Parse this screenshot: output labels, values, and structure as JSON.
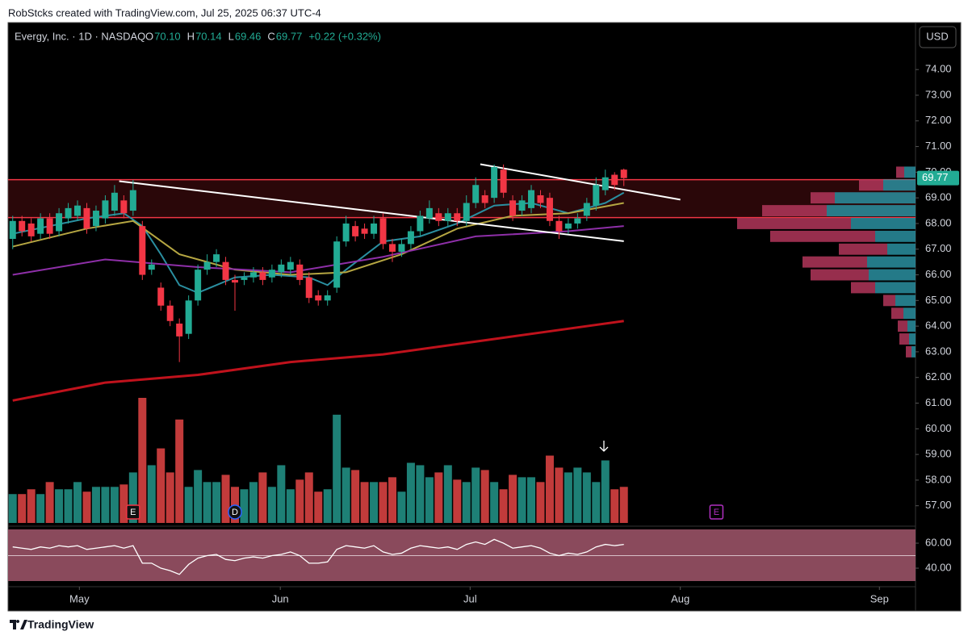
{
  "header": {
    "credit": "RobStcks created with TradingView.com, Jul 25, 2025 06:37 UTC-4",
    "symbol": "Evergy, Inc. · 1D · NASDAQ",
    "ohlc": [
      {
        "key": "O",
        "value": "70.10"
      },
      {
        "key": "H",
        "value": "70.14"
      },
      {
        "key": "L",
        "value": "69.46"
      },
      {
        "key": "C",
        "value": "69.77"
      }
    ],
    "change": "+0.22 (+0.32%)"
  },
  "currency": "USD",
  "footer": "TradingView",
  "chart_data": {
    "type": "candlestick",
    "x": [
      0,
      1,
      2,
      3,
      4,
      5,
      6,
      7,
      8,
      9,
      10,
      11,
      12,
      13,
      14,
      15,
      16,
      17,
      18,
      19,
      20,
      21,
      22,
      23,
      24,
      25,
      26,
      27,
      28,
      29,
      30,
      31,
      32,
      33,
      34,
      35,
      36,
      37,
      38,
      39,
      40,
      41,
      42,
      43,
      44,
      45,
      46,
      47,
      48,
      49,
      50,
      51,
      52,
      53,
      54,
      55,
      56,
      57,
      58,
      59,
      60,
      61,
      62,
      63,
      64,
      65,
      66
    ],
    "open": [
      67.4,
      68.1,
      68.0,
      67.6,
      68.2,
      67.7,
      68.2,
      68.3,
      68.6,
      67.9,
      68.2,
      68.5,
      68.9,
      68.5,
      67.9,
      66.2,
      65.5,
      64.8,
      64.1,
      63.7,
      65.0,
      66.2,
      66.5,
      66.5,
      65.8,
      65.8,
      65.9,
      66.1,
      65.9,
      66.1,
      66.2,
      66.4,
      65.9,
      65.2,
      65.0,
      65.5,
      67.3,
      67.9,
      67.8,
      67.6,
      68.2,
      67.2,
      66.9,
      67.2,
      67.7,
      68.2,
      68.4,
      68.1,
      68.4,
      68.1,
      68.8,
      69.1,
      69.0,
      70.1,
      68.9,
      68.5,
      68.6,
      69.1,
      69.0,
      68.1,
      67.8,
      68.0,
      68.3,
      68.7,
      69.3,
      69.9,
      70.1
    ],
    "high": [
      68.3,
      68.3,
      68.2,
      68.4,
      68.4,
      68.6,
      68.8,
      68.9,
      68.8,
      68.7,
      69.1,
      69.5,
      69.1,
      69.7,
      68.1,
      66.6,
      65.7,
      65.0,
      64.3,
      65.2,
      66.4,
      66.8,
      67.0,
      66.7,
      66.0,
      66.1,
      66.3,
      66.3,
      66.4,
      66.6,
      66.7,
      66.6,
      66.1,
      65.4,
      65.4,
      67.5,
      68.3,
      68.1,
      68.0,
      68.3,
      68.4,
      67.4,
      67.4,
      67.9,
      68.5,
      68.9,
      68.6,
      68.6,
      68.6,
      69.1,
      69.8,
      69.3,
      70.3,
      70.3,
      69.1,
      69.1,
      69.5,
      69.3,
      69.2,
      68.3,
      68.2,
      68.4,
      69.0,
      69.8,
      70.1,
      70.0,
      70.14
    ],
    "low": [
      67.0,
      67.5,
      67.3,
      67.4,
      67.4,
      67.5,
      68.0,
      68.1,
      67.6,
      67.7,
      68.0,
      68.3,
      68.2,
      68.3,
      65.8,
      66.0,
      64.6,
      64.0,
      62.6,
      63.5,
      64.8,
      66.0,
      66.3,
      65.6,
      64.6,
      65.6,
      65.7,
      65.6,
      65.7,
      65.9,
      66.0,
      65.6,
      64.9,
      64.8,
      64.8,
      65.3,
      67.1,
      67.3,
      67.4,
      67.4,
      67.0,
      66.5,
      66.7,
      67.0,
      67.5,
      68.0,
      67.9,
      67.9,
      67.9,
      67.9,
      68.6,
      68.6,
      68.8,
      69.0,
      68.1,
      68.3,
      68.4,
      68.6,
      67.9,
      67.4,
      67.6,
      67.8,
      68.1,
      68.5,
      69.1,
      69.3,
      69.46
    ],
    "close": [
      68.1,
      67.7,
      67.5,
      68.2,
      67.6,
      68.4,
      68.6,
      68.7,
      67.8,
      68.5,
      68.9,
      69.2,
      68.4,
      69.3,
      66.0,
      66.4,
      64.8,
      64.2,
      63.6,
      65.0,
      66.2,
      66.5,
      66.8,
      65.8,
      65.7,
      65.9,
      66.1,
      65.8,
      66.2,
      66.4,
      66.5,
      65.8,
      65.1,
      65.0,
      65.2,
      67.3,
      68.0,
      67.5,
      67.6,
      68.0,
      67.2,
      66.9,
      67.2,
      67.7,
      68.3,
      68.6,
      68.1,
      68.4,
      68.1,
      68.8,
      69.5,
      68.8,
      70.2,
      69.2,
      68.3,
      68.9,
      69.3,
      68.8,
      68.1,
      67.7,
      68.0,
      68.2,
      68.8,
      69.5,
      69.8,
      69.5,
      69.77
    ],
    "volume": [
      1.2,
      1.2,
      1.4,
      1.2,
      1.7,
      1.4,
      1.4,
      1.7,
      1.3,
      1.5,
      1.5,
      1.5,
      1.6,
      2.1,
      5.2,
      2.4,
      3.1,
      2.1,
      4.3,
      1.5,
      2.2,
      1.7,
      1.7,
      2.0,
      1.5,
      1.4,
      1.7,
      2.1,
      1.5,
      2.4,
      1.4,
      1.8,
      2.1,
      1.3,
      1.4,
      4.5,
      2.3,
      2.2,
      1.7,
      1.7,
      1.7,
      1.9,
      1.3,
      2.5,
      2.4,
      1.9,
      2.1,
      2.4,
      1.8,
      1.7,
      2.3,
      2.2,
      1.7,
      1.4,
      2.0,
      1.9,
      1.9,
      1.7,
      2.8,
      2.3,
      2.1,
      2.3,
      2.1,
      1.7,
      2.6,
      1.4,
      1.5
    ],
    "rsi": [
      57,
      56,
      55,
      57,
      56,
      58,
      57,
      58,
      55,
      56,
      57,
      58,
      56,
      58,
      44,
      44,
      40,
      38,
      35,
      43,
      48,
      50,
      51,
      47,
      46,
      48,
      49,
      48,
      50,
      51,
      53,
      50,
      44,
      44,
      45,
      55,
      58,
      57,
      56,
      58,
      53,
      51,
      52,
      56,
      58,
      57,
      56,
      57,
      55,
      59,
      61,
      59,
      63,
      60,
      56,
      57,
      58,
      56,
      52,
      50,
      52,
      51,
      53,
      57,
      59,
      58,
      59
    ],
    "up_color": "#22ab94",
    "down_color": "#f23645",
    "moving_averages": [
      {
        "color": "#2a8fa0",
        "x": [
          0,
          4,
          8,
          12,
          14,
          16,
          18,
          20,
          24,
          28,
          32,
          34,
          36,
          40,
          44,
          48,
          52,
          56,
          60,
          64,
          66
        ],
        "values": [
          67.6,
          67.9,
          68.2,
          68.4,
          67.9,
          66.8,
          65.6,
          65.3,
          65.9,
          66.0,
          65.9,
          65.6,
          66.2,
          67.3,
          67.5,
          68.0,
          68.7,
          68.8,
          68.4,
          68.8,
          69.2
        ]
      },
      {
        "color": "#b5a642",
        "x": [
          0,
          8,
          13,
          18,
          24,
          30,
          36,
          42,
          48,
          54,
          60,
          66
        ],
        "values": [
          67.1,
          67.8,
          68.1,
          66.8,
          66.2,
          66.0,
          66.1,
          66.8,
          67.8,
          68.3,
          68.4,
          68.8
        ]
      },
      {
        "color": "#8e2fa8",
        "x": [
          0,
          10,
          20,
          30,
          40,
          50,
          60,
          66
        ],
        "values": [
          66.0,
          66.6,
          66.3,
          66.1,
          66.7,
          67.5,
          67.7,
          67.9
        ]
      },
      {
        "color": "#c0121c",
        "x": [
          0,
          10,
          20,
          30,
          40,
          50,
          60,
          66
        ],
        "values": [
          61.1,
          61.8,
          62.1,
          62.6,
          62.9,
          63.4,
          63.9,
          64.2
        ]
      }
    ],
    "zone": [
      68.23,
      69.71
    ],
    "trendlines": [
      {
        "x": [
          11.5,
          66
        ],
        "y": [
          69.65,
          67.31
        ]
      },
      {
        "x": [
          50.5,
          72.1
        ],
        "y": [
          70.31,
          68.93
        ]
      }
    ],
    "events": [
      {
        "x": 13,
        "label": "E"
      },
      {
        "x": 24,
        "label": "D"
      },
      {
        "x": 76,
        "label": "E"
      }
    ],
    "volume_profile": {
      "levels": [
        70.0,
        69.5,
        69.0,
        68.5,
        68.0,
        67.5,
        67.0,
        66.5,
        66.0,
        65.5,
        65.0,
        64.5,
        64.0,
        63.5,
        63.0
      ],
      "up": [
        14,
        40,
        100,
        110,
        80,
        50,
        35,
        60,
        58,
        50,
        25,
        15,
        10,
        8,
        5
      ],
      "down": [
        10,
        30,
        30,
        80,
        141,
        130,
        60,
        80,
        72,
        30,
        15,
        15,
        12,
        12,
        7
      ],
      "up_color": "#2a8fa0",
      "down_color": "#b2365a"
    },
    "xlim": [
      -0.5,
      97.5
    ],
    "xticks": [
      {
        "value": 7.2,
        "label": "May"
      },
      {
        "value": 28.9,
        "label": "Jun"
      },
      {
        "value": 49.4,
        "label": "Jul"
      },
      {
        "value": 72.1,
        "label": "Aug"
      },
      {
        "value": 93.6,
        "label": "Sep"
      }
    ],
    "ylim": [
      56.33,
      75.83
    ],
    "yticks": [
      {
        "value": 57,
        "label": "57.00"
      },
      {
        "value": 58,
        "label": "58.00"
      },
      {
        "value": 59,
        "label": "59.00"
      },
      {
        "value": 60,
        "label": "60.00"
      },
      {
        "value": 61,
        "label": "61.00"
      },
      {
        "value": 62,
        "label": "62.00"
      },
      {
        "value": 63,
        "label": "63.00"
      },
      {
        "value": 64,
        "label": "64.00"
      },
      {
        "value": 65,
        "label": "65.00"
      },
      {
        "value": 66,
        "label": "66.00"
      },
      {
        "value": 67,
        "label": "67.00"
      },
      {
        "value": 68,
        "label": "68.00"
      },
      {
        "value": 69,
        "label": "69.00"
      },
      {
        "value": 70,
        "label": "70.00"
      },
      {
        "value": 71,
        "label": "71.00"
      },
      {
        "value": 72,
        "label": "72.00"
      },
      {
        "value": 73,
        "label": "73.00"
      },
      {
        "value": 74,
        "label": "74.00"
      }
    ],
    "rsi_ylim": [
      29.7,
      71
    ],
    "rsi_yticks": [
      {
        "value": 40,
        "label": "40.00"
      },
      {
        "value": 60,
        "label": "60.00"
      }
    ]
  }
}
